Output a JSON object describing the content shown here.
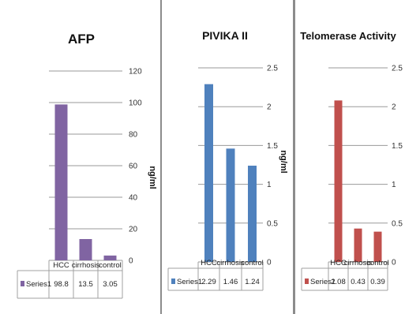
{
  "chart_data": [
    {
      "type": "bar",
      "title": "AFP",
      "ylabel": "ng/ml",
      "categories": [
        "HCC",
        "cirrhosis",
        "control"
      ],
      "series": [
        {
          "name": "Series1",
          "values": [
            98.8,
            13.5,
            3.05
          ]
        }
      ],
      "value_labels": [
        "98.8",
        "13.5",
        "3.05"
      ],
      "ylim": [
        0,
        120
      ],
      "yticks": [
        "0",
        "20",
        "40",
        "60",
        "80",
        "100",
        "120"
      ],
      "color": "#8064a2",
      "grid": true,
      "legend": "data-table"
    },
    {
      "type": "bar",
      "title": "PIVIKA II",
      "ylabel": "ng/ml",
      "categories": [
        "HCC",
        "cirrhosis",
        "control"
      ],
      "series": [
        {
          "name": "Series1",
          "values": [
            2.29,
            1.46,
            1.24
          ]
        }
      ],
      "value_labels": [
        "2.29",
        "1.46",
        "1.24"
      ],
      "ylim": [
        0,
        2.5
      ],
      "yticks": [
        "0",
        "0.5",
        "1",
        "1.5",
        "2",
        "2.5"
      ],
      "color": "#4f81bd",
      "grid": true,
      "legend": "data-table"
    },
    {
      "type": "bar",
      "title": "Telomerase Activity",
      "ylabel": "",
      "categories": [
        "HCC",
        "cirrhosis",
        "control"
      ],
      "series": [
        {
          "name": "Series1",
          "values": [
            2.08,
            0.43,
            0.39
          ]
        }
      ],
      "value_labels": [
        "2.08",
        "0.43",
        "0.39"
      ],
      "ylim": [
        0,
        2.5
      ],
      "yticks": [
        "0",
        "0.5",
        "1",
        "1.5",
        "2",
        "2.5"
      ],
      "color": "#c0504d",
      "grid": true,
      "legend": "data-table"
    }
  ]
}
